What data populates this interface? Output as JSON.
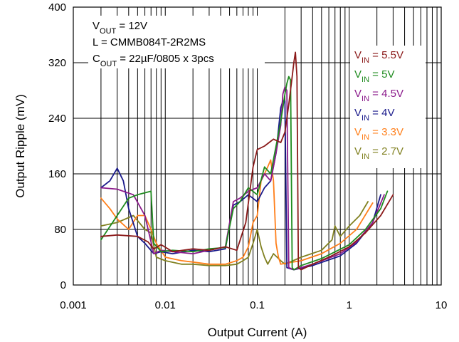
{
  "chart_data": {
    "type": "line",
    "xscale": "log",
    "xlabel": "Output Current (A)",
    "ylabel": "Output Ripple (mV)",
    "xlim": [
      0.001,
      10
    ],
    "ylim": [
      0,
      400
    ],
    "x_ticks": [
      "0.001",
      "0.01",
      "0.1",
      "1",
      "10"
    ],
    "y_ticks": [
      "0",
      "80",
      "160",
      "240",
      "320",
      "400"
    ],
    "grid": true,
    "legend_position": "right",
    "annotations": [
      {
        "main": "V",
        "sub": "OUT",
        "rest": " = 12V"
      },
      {
        "main": "L = CMMB084T-2R2MS",
        "sub": "",
        "rest": ""
      },
      {
        "main": "C",
        "sub": "OUT",
        "rest": " = 22µF/0805 x 3pcs"
      }
    ],
    "series": [
      {
        "name": "VIN = 5.5V",
        "label_main": "V",
        "label_sub": "IN",
        "label_rest": " = 5.5V",
        "color": "#8b1a1a",
        "x": [
          0.002,
          0.003,
          0.005,
          0.0065,
          0.0075,
          0.009,
          0.012,
          0.02,
          0.03,
          0.045,
          0.06,
          0.075,
          0.09,
          0.1,
          0.12,
          0.15,
          0.18,
          0.2,
          0.22,
          0.24,
          0.25,
          0.26,
          0.27,
          0.28,
          0.3,
          0.4,
          0.6,
          1.0,
          1.5,
          2.2,
          3.0
        ],
        "y": [
          70,
          72,
          70,
          62,
          52,
          58,
          48,
          52,
          50,
          55,
          50,
          90,
          170,
          195,
          200,
          210,
          205,
          220,
          260,
          300,
          320,
          335,
          300,
          25,
          22,
          30,
          40,
          55,
          75,
          100,
          130
        ]
      },
      {
        "name": "VIN = 5V",
        "label_main": "V",
        "label_sub": "IN",
        "label_rest": " = 5V",
        "color": "#1f8b1f",
        "x": [
          0.002,
          0.003,
          0.004,
          0.005,
          0.007,
          0.0075,
          0.009,
          0.012,
          0.02,
          0.03,
          0.045,
          0.055,
          0.065,
          0.08,
          0.1,
          0.12,
          0.14,
          0.16,
          0.18,
          0.2,
          0.21,
          0.22,
          0.23,
          0.24,
          0.25,
          0.3,
          0.5,
          1.0,
          1.5,
          2.2,
          2.6
        ],
        "y": [
          65,
          100,
          125,
          130,
          135,
          60,
          48,
          50,
          48,
          52,
          54,
          110,
          120,
          140,
          130,
          170,
          160,
          200,
          235,
          275,
          290,
          300,
          295,
          25,
          22,
          28,
          38,
          58,
          80,
          110,
          135
        ]
      },
      {
        "name": "VIN = 4.5V",
        "label_main": "V",
        "label_sub": "IN",
        "label_rest": " = 4.5V",
        "color": "#8b1a8b",
        "x": [
          0.002,
          0.003,
          0.0045,
          0.006,
          0.0075,
          0.009,
          0.012,
          0.02,
          0.03,
          0.045,
          0.055,
          0.065,
          0.08,
          0.1,
          0.12,
          0.14,
          0.16,
          0.18,
          0.19,
          0.2,
          0.21,
          0.22,
          0.25,
          0.4,
          0.8,
          1.2,
          1.8,
          2.4
        ],
        "y": [
          140,
          138,
          130,
          100,
          45,
          50,
          48,
          45,
          50,
          55,
          120,
          125,
          135,
          140,
          160,
          150,
          190,
          230,
          275,
          285,
          280,
          25,
          22,
          30,
          45,
          62,
          90,
          130
        ]
      },
      {
        "name": "VIN = 4V",
        "label_main": "V",
        "label_sub": "IN",
        "label_rest": " = 4V",
        "color": "#1a1a8b",
        "x": [
          0.002,
          0.0025,
          0.003,
          0.0035,
          0.004,
          0.005,
          0.006,
          0.0075,
          0.009,
          0.012,
          0.02,
          0.03,
          0.045,
          0.055,
          0.065,
          0.08,
          0.1,
          0.12,
          0.14,
          0.16,
          0.18,
          0.19,
          0.2,
          0.21,
          0.25,
          0.4,
          0.8,
          1.2,
          1.8,
          2.2
        ],
        "y": [
          140,
          150,
          168,
          150,
          110,
          70,
          60,
          45,
          48,
          45,
          50,
          48,
          52,
          115,
          120,
          130,
          120,
          140,
          150,
          190,
          255,
          265,
          265,
          25,
          22,
          28,
          42,
          60,
          90,
          130
        ]
      },
      {
        "name": "VIN = 3.3V",
        "label_main": "V",
        "label_sub": "IN",
        "label_rest": " = 3.3V",
        "color": "#ff7f1a",
        "x": [
          0.002,
          0.0025,
          0.003,
          0.004,
          0.005,
          0.006,
          0.007,
          0.008,
          0.01,
          0.015,
          0.02,
          0.03,
          0.045,
          0.06,
          0.07,
          0.08,
          0.09,
          0.1,
          0.11,
          0.12,
          0.13,
          0.14,
          0.15,
          0.16,
          0.17,
          0.18,
          0.3,
          0.5,
          0.8,
          1.2,
          1.8
        ],
        "y": [
          125,
          110,
          95,
          80,
          100,
          100,
          80,
          60,
          40,
          35,
          33,
          30,
          30,
          35,
          40,
          55,
          90,
          100,
          150,
          160,
          170,
          180,
          150,
          60,
          40,
          30,
          35,
          45,
          60,
          80,
          118
        ]
      },
      {
        "name": "VIN = 2.7V",
        "label_main": "V",
        "label_sub": "IN",
        "label_rest": " = 2.7V",
        "color": "#808020",
        "x": [
          0.002,
          0.003,
          0.0045,
          0.006,
          0.007,
          0.008,
          0.01,
          0.015,
          0.02,
          0.03,
          0.045,
          0.06,
          0.07,
          0.08,
          0.09,
          0.1,
          0.11,
          0.12,
          0.13,
          0.15,
          0.18,
          0.2,
          0.3,
          0.5,
          0.65,
          0.7,
          0.8,
          1.0,
          1.3,
          1.6
        ],
        "y": [
          85,
          90,
          100,
          80,
          75,
          40,
          35,
          30,
          30,
          28,
          28,
          30,
          35,
          40,
          60,
          80,
          55,
          40,
          30,
          45,
          35,
          30,
          40,
          50,
          65,
          85,
          70,
          85,
          100,
          120
        ]
      }
    ]
  }
}
